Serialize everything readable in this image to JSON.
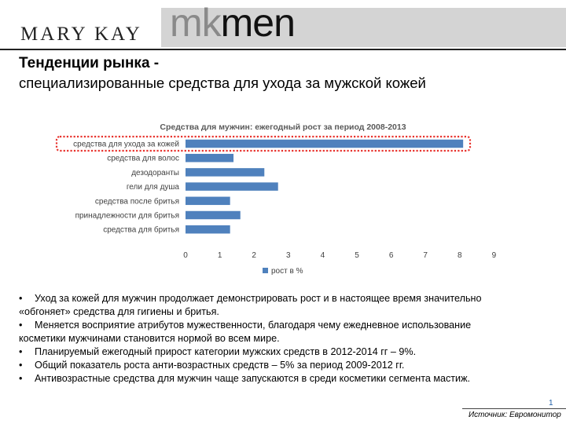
{
  "logo": {
    "brand": "MARY KAY",
    "wordmark_a": "mk",
    "wordmark_b": "men"
  },
  "title": {
    "line1": "Тенденции рынка -",
    "line2": "специализированные средства для ухода за мужской кожей"
  },
  "chart_data": {
    "type": "bar",
    "orientation": "horizontal",
    "title": "Средства для мужчин: ежегодный рост за период 2008-2013",
    "categories": [
      "средства для ухода за кожей",
      "средства для волос",
      "дезодоранты",
      "гели для душа",
      "средства после бритья",
      "принадлежности для бритья",
      "средства для бритья"
    ],
    "series": [
      {
        "name": "рост в %",
        "values": [
          8.1,
          1.4,
          2.3,
          2.7,
          1.3,
          1.6,
          1.3
        ]
      }
    ],
    "xlim": [
      0,
      9
    ],
    "x_ticks": [
      "0",
      "1",
      "2",
      "3",
      "4",
      "5",
      "6",
      "7",
      "8",
      "9"
    ],
    "grid": false,
    "legend_position": "bottom",
    "highlighted_category": "средства для ухода за кожей",
    "colors": {
      "bar": "#4f81bd",
      "highlight": "#e8322d"
    }
  },
  "bullets": [
    {
      "marker": "•",
      "lines": [
        "Уход за кожей для мужчин продолжает демонстрировать рост и в настоящее время значительно",
        "«обгоняет» средства для гигиены и бритья."
      ]
    },
    {
      "marker": "•",
      "lines": [
        "Меняется восприятие атрибутов мужественности, благодаря чему ежедневное использование",
        "косметики мужчинами становится нормой во всем мире."
      ]
    },
    {
      "marker": "•",
      "lines": [
        "Планируемый ежегодный прирост категории мужских средств в 2012-2014 гг – 9%."
      ]
    },
    {
      "marker": "•",
      "lines": [
        "Общий показатель роста анти-возрастных средств – 5% за период 2009-2012 гг."
      ]
    },
    {
      "marker": "•",
      "lines": [
        "Антивозрастные средства для мужчин чаще запускаются в среди косметики сегмента мастиж."
      ]
    }
  ],
  "footer": {
    "page_number": "1",
    "source": "Источник: Евромонитор"
  }
}
